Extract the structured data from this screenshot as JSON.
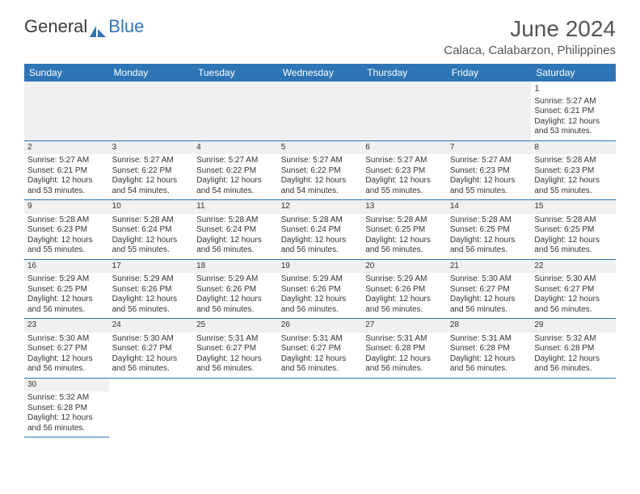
{
  "logo": {
    "text1": "General",
    "text2": "Blue"
  },
  "title": "June 2024",
  "location": "Calaca, Calabarzon, Philippines",
  "header_bg": "#2e75b6",
  "header_fg": "#ffffff",
  "daynum_bg": "#f0f0f0",
  "border_color": "#2e75b6",
  "days": [
    "Sunday",
    "Monday",
    "Tuesday",
    "Wednesday",
    "Thursday",
    "Friday",
    "Saturday"
  ],
  "weeks": [
    [
      null,
      null,
      null,
      null,
      null,
      null,
      {
        "n": "1",
        "sr": "Sunrise: 5:27 AM",
        "ss": "Sunset: 6:21 PM",
        "dl1": "Daylight: 12 hours",
        "dl2": "and 53 minutes."
      }
    ],
    [
      {
        "n": "2",
        "sr": "Sunrise: 5:27 AM",
        "ss": "Sunset: 6:21 PM",
        "dl1": "Daylight: 12 hours",
        "dl2": "and 53 minutes."
      },
      {
        "n": "3",
        "sr": "Sunrise: 5:27 AM",
        "ss": "Sunset: 6:22 PM",
        "dl1": "Daylight: 12 hours",
        "dl2": "and 54 minutes."
      },
      {
        "n": "4",
        "sr": "Sunrise: 5:27 AM",
        "ss": "Sunset: 6:22 PM",
        "dl1": "Daylight: 12 hours",
        "dl2": "and 54 minutes."
      },
      {
        "n": "5",
        "sr": "Sunrise: 5:27 AM",
        "ss": "Sunset: 6:22 PM",
        "dl1": "Daylight: 12 hours",
        "dl2": "and 54 minutes."
      },
      {
        "n": "6",
        "sr": "Sunrise: 5:27 AM",
        "ss": "Sunset: 6:23 PM",
        "dl1": "Daylight: 12 hours",
        "dl2": "and 55 minutes."
      },
      {
        "n": "7",
        "sr": "Sunrise: 5:27 AM",
        "ss": "Sunset: 6:23 PM",
        "dl1": "Daylight: 12 hours",
        "dl2": "and 55 minutes."
      },
      {
        "n": "8",
        "sr": "Sunrise: 5:28 AM",
        "ss": "Sunset: 6:23 PM",
        "dl1": "Daylight: 12 hours",
        "dl2": "and 55 minutes."
      }
    ],
    [
      {
        "n": "9",
        "sr": "Sunrise: 5:28 AM",
        "ss": "Sunset: 6:23 PM",
        "dl1": "Daylight: 12 hours",
        "dl2": "and 55 minutes."
      },
      {
        "n": "10",
        "sr": "Sunrise: 5:28 AM",
        "ss": "Sunset: 6:24 PM",
        "dl1": "Daylight: 12 hours",
        "dl2": "and 55 minutes."
      },
      {
        "n": "11",
        "sr": "Sunrise: 5:28 AM",
        "ss": "Sunset: 6:24 PM",
        "dl1": "Daylight: 12 hours",
        "dl2": "and 56 minutes."
      },
      {
        "n": "12",
        "sr": "Sunrise: 5:28 AM",
        "ss": "Sunset: 6:24 PM",
        "dl1": "Daylight: 12 hours",
        "dl2": "and 56 minutes."
      },
      {
        "n": "13",
        "sr": "Sunrise: 5:28 AM",
        "ss": "Sunset: 6:25 PM",
        "dl1": "Daylight: 12 hours",
        "dl2": "and 56 minutes."
      },
      {
        "n": "14",
        "sr": "Sunrise: 5:28 AM",
        "ss": "Sunset: 6:25 PM",
        "dl1": "Daylight: 12 hours",
        "dl2": "and 56 minutes."
      },
      {
        "n": "15",
        "sr": "Sunrise: 5:28 AM",
        "ss": "Sunset: 6:25 PM",
        "dl1": "Daylight: 12 hours",
        "dl2": "and 56 minutes."
      }
    ],
    [
      {
        "n": "16",
        "sr": "Sunrise: 5:29 AM",
        "ss": "Sunset: 6:25 PM",
        "dl1": "Daylight: 12 hours",
        "dl2": "and 56 minutes."
      },
      {
        "n": "17",
        "sr": "Sunrise: 5:29 AM",
        "ss": "Sunset: 6:26 PM",
        "dl1": "Daylight: 12 hours",
        "dl2": "and 56 minutes."
      },
      {
        "n": "18",
        "sr": "Sunrise: 5:29 AM",
        "ss": "Sunset: 6:26 PM",
        "dl1": "Daylight: 12 hours",
        "dl2": "and 56 minutes."
      },
      {
        "n": "19",
        "sr": "Sunrise: 5:29 AM",
        "ss": "Sunset: 6:26 PM",
        "dl1": "Daylight: 12 hours",
        "dl2": "and 56 minutes."
      },
      {
        "n": "20",
        "sr": "Sunrise: 5:29 AM",
        "ss": "Sunset: 6:26 PM",
        "dl1": "Daylight: 12 hours",
        "dl2": "and 56 minutes."
      },
      {
        "n": "21",
        "sr": "Sunrise: 5:30 AM",
        "ss": "Sunset: 6:27 PM",
        "dl1": "Daylight: 12 hours",
        "dl2": "and 56 minutes."
      },
      {
        "n": "22",
        "sr": "Sunrise: 5:30 AM",
        "ss": "Sunset: 6:27 PM",
        "dl1": "Daylight: 12 hours",
        "dl2": "and 56 minutes."
      }
    ],
    [
      {
        "n": "23",
        "sr": "Sunrise: 5:30 AM",
        "ss": "Sunset: 6:27 PM",
        "dl1": "Daylight: 12 hours",
        "dl2": "and 56 minutes."
      },
      {
        "n": "24",
        "sr": "Sunrise: 5:30 AM",
        "ss": "Sunset: 6:27 PM",
        "dl1": "Daylight: 12 hours",
        "dl2": "and 56 minutes."
      },
      {
        "n": "25",
        "sr": "Sunrise: 5:31 AM",
        "ss": "Sunset: 6:27 PM",
        "dl1": "Daylight: 12 hours",
        "dl2": "and 56 minutes."
      },
      {
        "n": "26",
        "sr": "Sunrise: 5:31 AM",
        "ss": "Sunset: 6:27 PM",
        "dl1": "Daylight: 12 hours",
        "dl2": "and 56 minutes."
      },
      {
        "n": "27",
        "sr": "Sunrise: 5:31 AM",
        "ss": "Sunset: 6:28 PM",
        "dl1": "Daylight: 12 hours",
        "dl2": "and 56 minutes."
      },
      {
        "n": "28",
        "sr": "Sunrise: 5:31 AM",
        "ss": "Sunset: 6:28 PM",
        "dl1": "Daylight: 12 hours",
        "dl2": "and 56 minutes."
      },
      {
        "n": "29",
        "sr": "Sunrise: 5:32 AM",
        "ss": "Sunset: 6:28 PM",
        "dl1": "Daylight: 12 hours",
        "dl2": "and 56 minutes."
      }
    ],
    [
      {
        "n": "30",
        "sr": "Sunrise: 5:32 AM",
        "ss": "Sunset: 6:28 PM",
        "dl1": "Daylight: 12 hours",
        "dl2": "and 56 minutes."
      },
      null,
      null,
      null,
      null,
      null,
      null
    ]
  ]
}
